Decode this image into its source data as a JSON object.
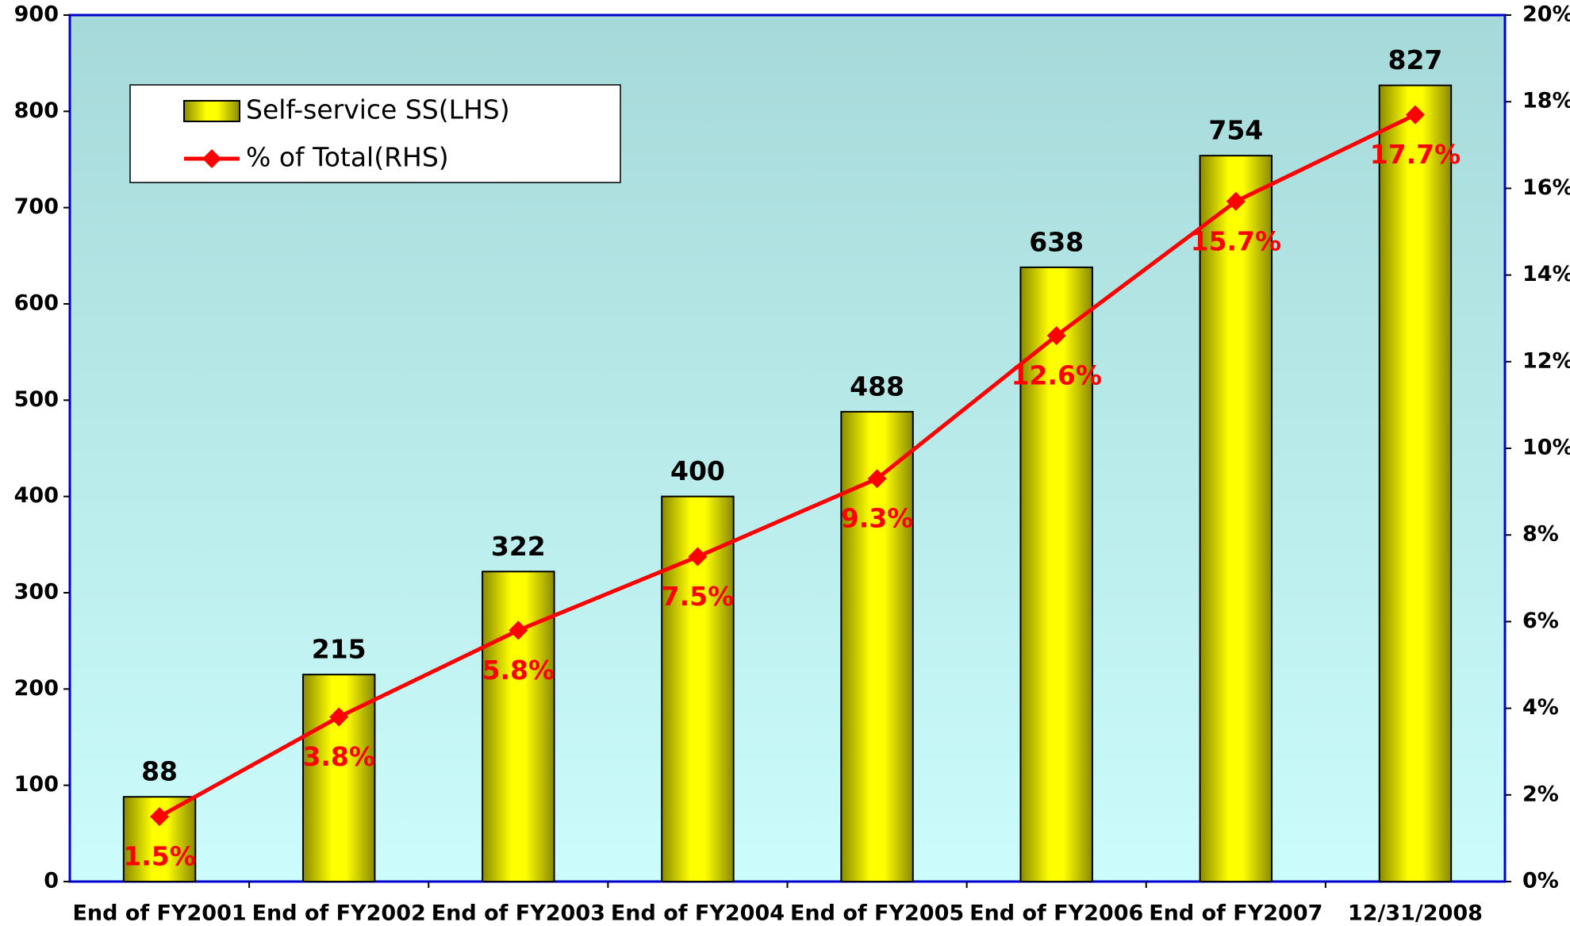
{
  "chart_data": {
    "type": "bar",
    "categories": [
      "End of FY2001",
      "End of FY2002",
      "End of FY2003",
      "End of FY2004",
      "End of FY2005",
      "End of FY2006",
      "End of FY2007",
      "12/31/2008"
    ],
    "series": [
      {
        "name": "Self-service SS(LHS)",
        "type": "bar",
        "color": "#ffff00",
        "values": [
          88,
          215,
          322,
          400,
          488,
          638,
          754,
          827
        ]
      },
      {
        "name": "% of Total(RHS)",
        "type": "line",
        "axis": "y2",
        "color": "#ff0000",
        "values": [
          1.5,
          3.8,
          5.8,
          7.5,
          9.3,
          12.6,
          15.7,
          17.7
        ],
        "value_labels": [
          "1.5%",
          "3.8%",
          "5.8%",
          "7.5%",
          "9.3%",
          "12.6%",
          "15.7%",
          "17.7%"
        ]
      }
    ],
    "ylim": [
      0,
      900
    ],
    "yticks": [
      0,
      100,
      200,
      300,
      400,
      500,
      600,
      700,
      800,
      900
    ],
    "y2lim": [
      0,
      20
    ],
    "y2ticks": [
      {
        "value": 0,
        "label": "0%"
      },
      {
        "value": 2,
        "label": "2%"
      },
      {
        "value": 4,
        "label": "4%"
      },
      {
        "value": 6,
        "label": "6%"
      },
      {
        "value": 8,
        "label": "8%"
      },
      {
        "value": 10,
        "label": "10%"
      },
      {
        "value": 12,
        "label": "12%"
      },
      {
        "value": 14,
        "label": "14%"
      },
      {
        "value": 16,
        "label": "16%"
      },
      {
        "value": 18,
        "label": "18%"
      },
      {
        "value": 20,
        "label": "20%"
      }
    ],
    "legend": "upper left"
  }
}
